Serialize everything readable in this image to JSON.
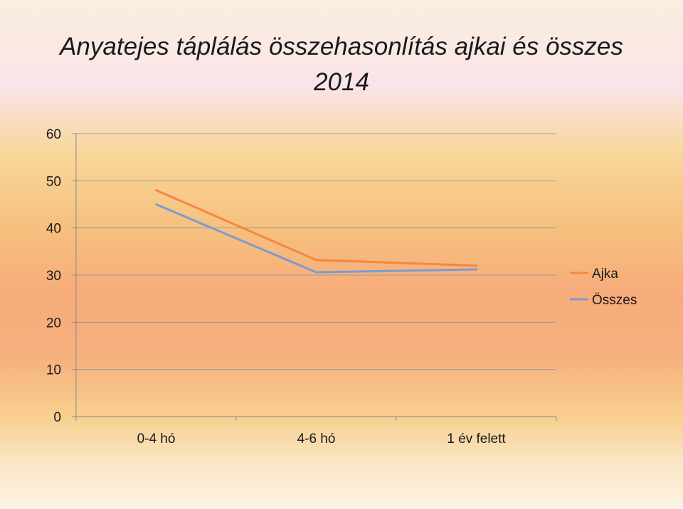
{
  "slide": {
    "title_line1": "Anyatejes táplálás összehasonlítás ajkai és összes",
    "title_line2": "2014"
  },
  "chart_data": {
    "type": "line",
    "categories": [
      "0-4 hó",
      "4-6 hó",
      "1 év felett"
    ],
    "ylim": [
      0,
      60
    ],
    "yticks": [
      0,
      10,
      20,
      30,
      40,
      50,
      60
    ],
    "grid": true,
    "legend_position": "right",
    "series": [
      {
        "name": "Ajka",
        "values": [
          48,
          33.2,
          32
        ],
        "color": "#f4873f"
      },
      {
        "name": "Összes",
        "values": [
          45,
          30.6,
          31.2
        ],
        "color": "#7d9bd0"
      }
    ]
  }
}
